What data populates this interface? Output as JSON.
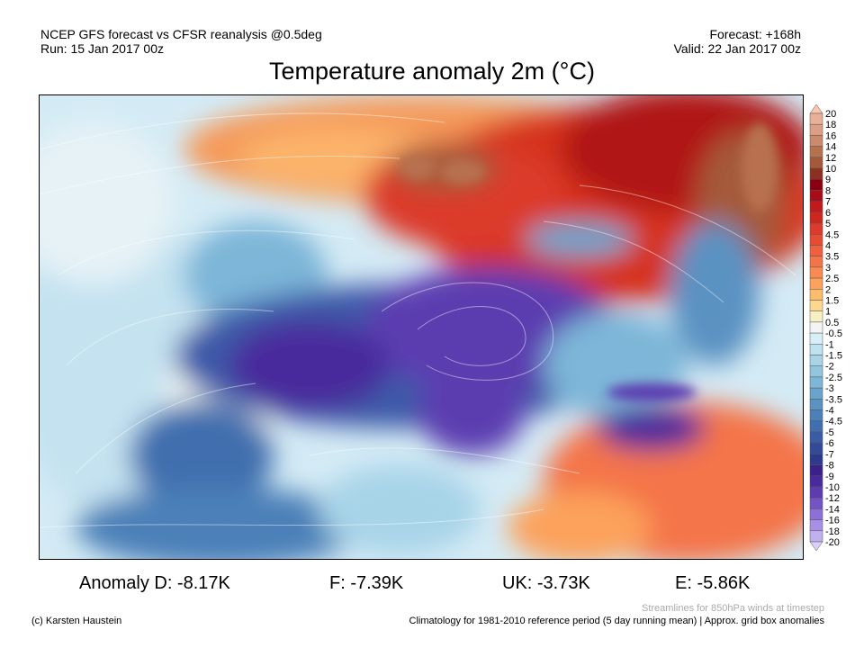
{
  "header": {
    "model_line": "NCEP GFS forecast vs CFSR reanalysis @0.5deg",
    "run_line": "Run: 15 Jan 2017 00z",
    "forecast_line": "Forecast: +168h",
    "valid_line": "Valid: 22 Jan 2017 00z"
  },
  "title": "Temperature anomaly 2m (°C)",
  "anomalies": [
    {
      "label": "Anomaly D: -8.17K"
    },
    {
      "label": "F: -7.39K"
    },
    {
      "label": "UK: -3.73K"
    },
    {
      "label": "E: -5.86K"
    }
  ],
  "footer": {
    "credit": "(c) Karsten Haustein",
    "streamlines_note": "Streamlines for 850hPa winds at timestep",
    "climatology_note": "Climatology for 1981-2010 reference period (5 day running mean) | Approx. grid box anomalies"
  },
  "colorbar": {
    "labels": [
      "20",
      "18",
      "16",
      "14",
      "12",
      "10",
      "9",
      "8",
      "7",
      "6",
      "5",
      "4.5",
      "4",
      "3.5",
      "3",
      "2.5",
      "2",
      "1.5",
      "1",
      "0.5",
      "-0.5",
      "-1",
      "-1.5",
      "-2",
      "-2.5",
      "-3",
      "-3.5",
      "-4",
      "-4.5",
      "-5",
      "-6",
      "-7",
      "-8",
      "-9",
      "-10",
      "-12",
      "-14",
      "-16",
      "-18",
      "-20"
    ],
    "colors": [
      "#f6c7ae",
      "#e8b098",
      "#dc9e84",
      "#cc8a6c",
      "#b8714f",
      "#a45a3a",
      "#8e3020",
      "#8a0010",
      "#a80c16",
      "#c01a1c",
      "#d02620",
      "#dc3a2a",
      "#e64c34",
      "#ee6040",
      "#f4744a",
      "#f88a52",
      "#fca25c",
      "#fdbc6c",
      "#fdd690",
      "#f6f0c4",
      "#f4f4f4",
      "#d8eef8",
      "#bfe2f0",
      "#a8d4e8",
      "#92c6e0",
      "#7db6d8",
      "#6aa4cc",
      "#5a92c2",
      "#4c80b8",
      "#416eae",
      "#395ca4",
      "#324a98",
      "#2c3a8c",
      "#3a2088",
      "#4a2a9c",
      "#5c3cb0",
      "#7454c4",
      "#8c70d6",
      "#a890e6",
      "#c0b0f0",
      "#d8d0f8"
    ]
  }
}
